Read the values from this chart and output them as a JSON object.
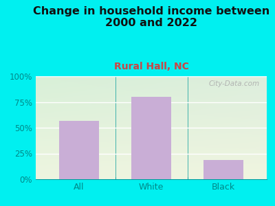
{
  "title": "Change in household income between\n2000 and 2022",
  "subtitle": "Rural Hall, NC",
  "categories": [
    "All",
    "White",
    "Black"
  ],
  "values": [
    57,
    80,
    19
  ],
  "bar_color": "#c9aed6",
  "title_fontsize": 11.5,
  "subtitle_fontsize": 10,
  "subtitle_color": "#cc4444",
  "title_color": "#111111",
  "tick_label_color": "#008888",
  "background_outer": "#00f0f0",
  "background_inner_topleft": "#d8f0d8",
  "background_inner_topright": "#e8eee8",
  "background_inner_bottom": "#eef5e8",
  "ylim": [
    0,
    100
  ],
  "yticks": [
    0,
    25,
    50,
    75,
    100
  ],
  "ytick_labels": [
    "0%",
    "25%",
    "50%",
    "75%",
    "100%"
  ],
  "watermark": "City-Data.com",
  "watermark_color": "#aaaaaa"
}
